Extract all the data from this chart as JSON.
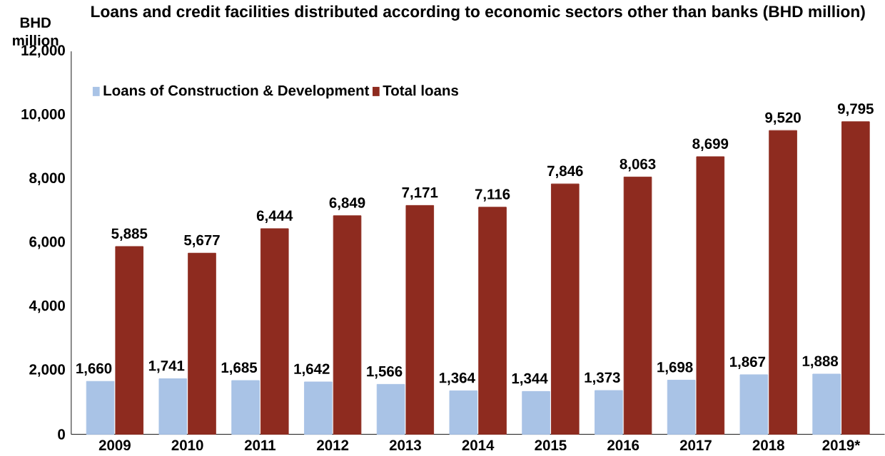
{
  "chart_data": {
    "type": "bar",
    "title": "Loans and credit facilities distributed according to economic sectors other than banks (BHD million)",
    "ylabel": "BHD million",
    "categories": [
      "2009",
      "2010",
      "2011",
      "2012",
      "2013",
      "2014",
      "2015",
      "2016",
      "2017",
      "2018",
      "2019*"
    ],
    "series": [
      {
        "name": "Loans of Construction & Development",
        "color": "#a9c3e6",
        "values": [
          1660,
          1741,
          1685,
          1642,
          1566,
          1364,
          1344,
          1373,
          1698,
          1867,
          1888
        ],
        "value_labels": [
          "1,660",
          "1,741",
          "1,685",
          "1,642",
          "1,566",
          "1,364",
          "1,344",
          "1,373",
          "1,698",
          "1,867",
          "1,888"
        ]
      },
      {
        "name": "Total loans",
        "color": "#8e2b1f",
        "values": [
          5885,
          5677,
          6444,
          6849,
          7171,
          7116,
          7846,
          8063,
          8699,
          9520,
          9795
        ],
        "value_labels": [
          "5,885",
          "5,677",
          "6,444",
          "6,849",
          "7,171",
          "7,116",
          "7,846",
          "8,063",
          "8,699",
          "9,520",
          "9,795"
        ]
      }
    ],
    "ylim": [
      0,
      12000
    ],
    "yticks": [
      0,
      {
        "value": 2000,
        "label": "2,000"
      },
      {
        "value": 4000,
        "label": "4,000"
      },
      {
        "value": 6000,
        "label": "6,000"
      },
      {
        "value": 8000,
        "label": "8,000"
      },
      {
        "value": 10000,
        "label": "10,000"
      },
      {
        "value": 12000,
        "label": "12,000"
      }
    ],
    "grid": false,
    "legend": "top left"
  }
}
